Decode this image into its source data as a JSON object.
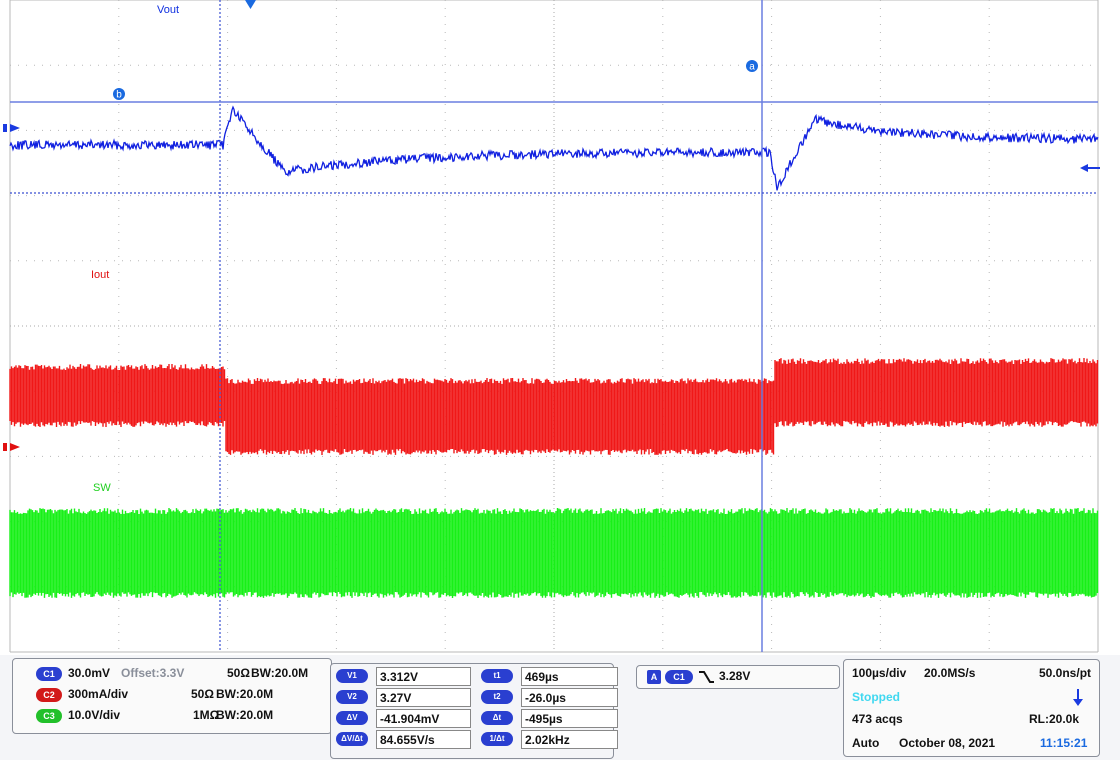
{
  "traces": {
    "vout": "Vout",
    "iout": "Iout",
    "sw": "SW"
  },
  "cursor_markers": {
    "a": "a",
    "b": "b"
  },
  "channels": [
    {
      "badge": "C1",
      "scale": "30.0mV",
      "offset": "Offset:3.3V",
      "impedance": "50Ω",
      "bandwidth": "BW:20.0M"
    },
    {
      "badge": "C2",
      "scale": "300mA/div",
      "impedance": "50Ω",
      "bandwidth": "BW:20.0M"
    },
    {
      "badge": "C3",
      "scale": "10.0V/div",
      "impedance": "1MΩ",
      "bandwidth": "BW:20.0M"
    }
  ],
  "cursors": {
    "voltage": [
      {
        "label": "V1",
        "value": "3.312V"
      },
      {
        "label": "V2",
        "value": "3.27V"
      },
      {
        "label": "ΔV",
        "value": "-41.904mV"
      },
      {
        "label": "ΔV/Δt",
        "value": "84.655V/s"
      }
    ],
    "time": [
      {
        "label": "t1",
        "value": "469µs"
      },
      {
        "label": "t2",
        "value": "-26.0µs"
      },
      {
        "label": "Δt",
        "value": "-495µs"
      },
      {
        "label": "1/Δt",
        "value": "2.02kHz"
      }
    ]
  },
  "trigger": {
    "mode_badge": "A",
    "source": "C1",
    "level": "3.28V"
  },
  "timebase": {
    "scale": "100µs/div",
    "sample_rate": "20.0MS/s",
    "resolution": "50.0ns/pt",
    "state": "Stopped",
    "acquisitions": "473 acqs",
    "record_length": "RL:20.0k",
    "mode": "Auto",
    "date": "October 08, 2021",
    "time": "11:15:21"
  }
}
